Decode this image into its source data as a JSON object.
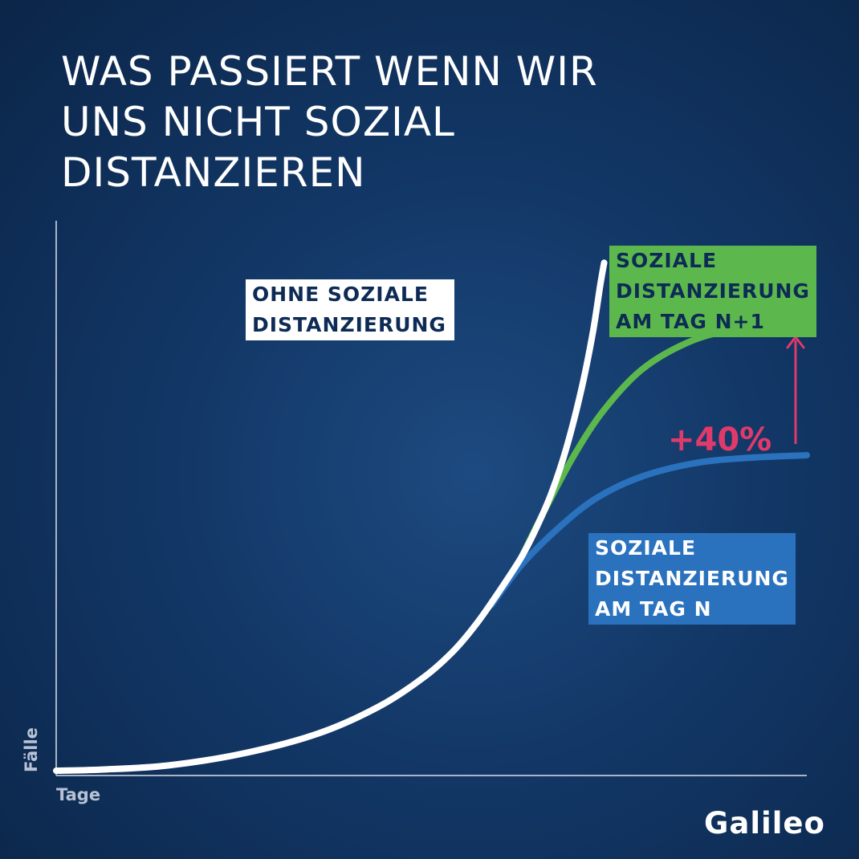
{
  "title_lines": [
    "WAS PASSIERT WENN WIR",
    "UNS NICHT SOZIAL",
    "DISTANZIEREN"
  ],
  "logo": "Galileo",
  "colors": {
    "background": "#123766",
    "no_distancing": "#ffffff",
    "distancing_n1": "#5cb84d",
    "distancing_n": "#2a72be",
    "accent": "#e03a6a",
    "axis": "#a9b4c6"
  },
  "chart_data": {
    "type": "line",
    "title": "WAS PASSIERT WENN WIR UNS NICHT SOZIAL DISTANZIEREN",
    "xlabel": "Tage",
    "ylabel": "Fälle",
    "grid": false,
    "legend": "inline labels",
    "series": [
      {
        "name": "OHNE SOZIALE DISTANZIERUNG",
        "label_lines": [
          "OHNE SOZIALE",
          "DISTANZIERUNG"
        ],
        "color": "#ffffff",
        "points": [
          [
            0,
            0
          ],
          [
            60,
            0.4
          ],
          [
            150,
            2
          ],
          [
            250,
            6.5
          ],
          [
            350,
            14
          ],
          [
            430,
            24
          ],
          [
            490,
            35
          ],
          [
            530,
            45
          ],
          [
            560,
            55
          ],
          [
            590,
            67
          ],
          [
            620,
            80
          ],
          [
            640,
            91
          ],
          [
            660,
            104
          ],
          [
            680,
            121
          ],
          [
            700,
            143
          ],
          [
            715,
            164
          ],
          [
            725,
            182
          ],
          [
            730,
            190
          ]
        ]
      },
      {
        "name": "SOZIALE DISTANZIERUNG AM TAG N+1",
        "label_lines": [
          "SOZIALE",
          "DISTANZIERUNG",
          "AM TAG N+1"
        ],
        "color": "#5cb84d",
        "points": [
          [
            620,
            80
          ],
          [
            650,
            97
          ],
          [
            690,
            118
          ],
          [
            730,
            135
          ],
          [
            780,
            150
          ],
          [
            840,
            160
          ],
          [
            900,
            165
          ],
          [
            960,
            167
          ],
          [
            1000,
            167
          ]
        ]
      },
      {
        "name": "SOZIALE DISTANZIERUNG AM TAG N",
        "label_lines": [
          "SOZIALE",
          "DISTANZIERUNG",
          "AM TAG N"
        ],
        "color": "#2a72be",
        "points": [
          [
            580,
            62
          ],
          [
            620,
            77
          ],
          [
            670,
            91
          ],
          [
            720,
            102
          ],
          [
            780,
            110
          ],
          [
            850,
            115
          ],
          [
            920,
            117
          ],
          [
            1000,
            118
          ]
        ]
      }
    ],
    "annotations": [
      {
        "text": "+40%",
        "type": "arrow",
        "from_series": "SOZIALE DISTANZIERUNG AM TAG N",
        "to_series": "SOZIALE DISTANZIERUNG AM TAG N+1"
      }
    ]
  }
}
